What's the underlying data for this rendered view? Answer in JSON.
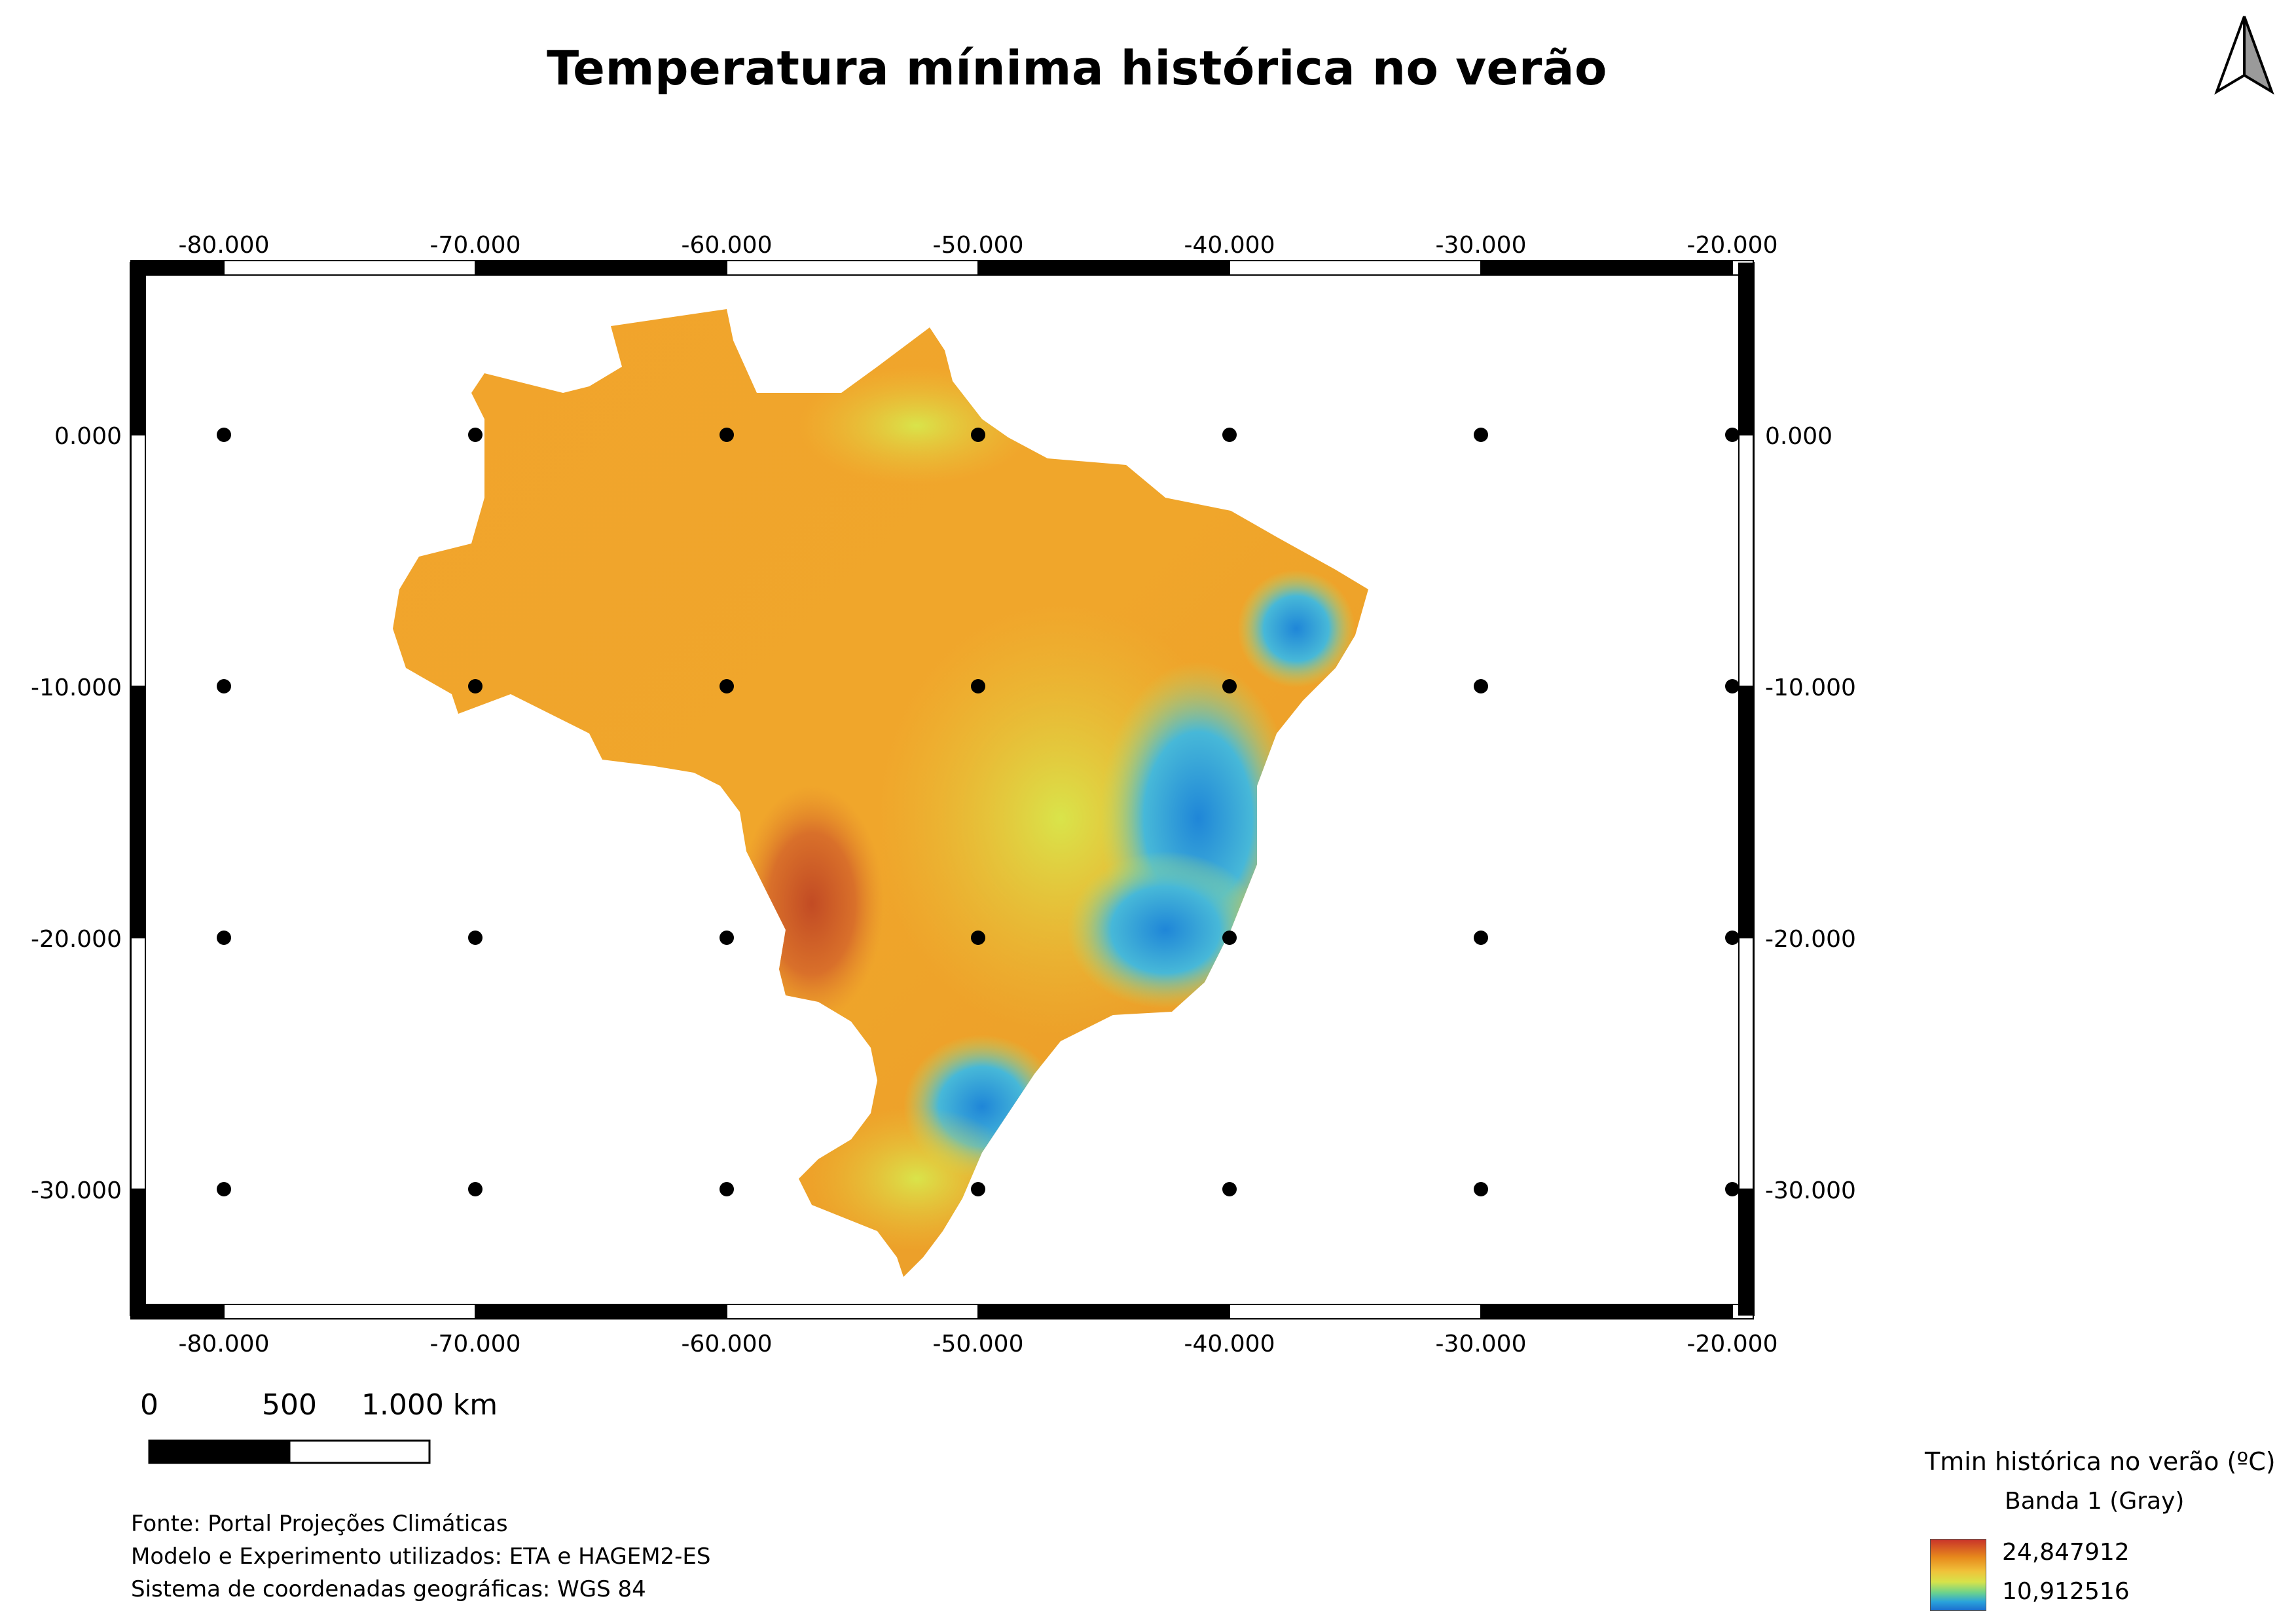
{
  "title": "Temperatura mínima histórica no verão",
  "north_arrow": "north-arrow-icon",
  "grid": {
    "x_labels": [
      "-80.000",
      "-70.000",
      "-60.000",
      "-50.000",
      "-40.000",
      "-30.000",
      "-20.000"
    ],
    "y_labels": [
      "0.000",
      "-10.000",
      "-20.000",
      "-30.000"
    ]
  },
  "scale_bar": {
    "labels": [
      "0",
      "500",
      "1.000 km"
    ]
  },
  "credits": {
    "source": "Fonte: Portal Projeções Climáticas",
    "model": "Modelo e Experimento utilizados: ETA e HAGEM2-ES",
    "crs": "Sistema de coordenadas geográficas: WGS 84"
  },
  "legend": {
    "title": "Tmin histórica no verão (ºC)",
    "band": "Banda 1 (Gray)",
    "max": "24,847912",
    "min": "10,912516",
    "colors": [
      "#c9342a",
      "#e7891c",
      "#f0c23a",
      "#d7e34a",
      "#6dd38b",
      "#2aa3db",
      "#1c6fd0"
    ]
  }
}
